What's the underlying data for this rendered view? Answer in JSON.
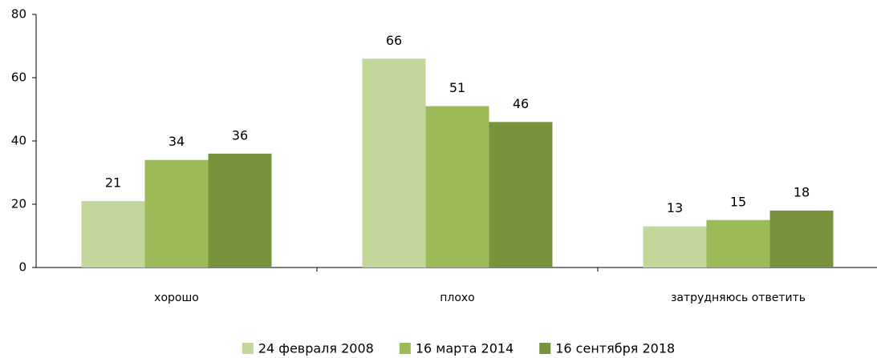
{
  "chart_data": {
    "type": "bar",
    "categories": [
      "хорошо",
      "плохо",
      "затрудняюсь ответить"
    ],
    "series": [
      {
        "name": "24 февраля 2008",
        "color": "#c4d79b",
        "values": [
          21,
          66,
          13
        ]
      },
      {
        "name": "16 марта 2014",
        "color": "#9bbb59",
        "values": [
          34,
          51,
          15
        ]
      },
      {
        "name": "16 сентября 2018",
        "color": "#77933c",
        "values": [
          36,
          46,
          18
        ]
      }
    ],
    "ylim": [
      0,
      80
    ],
    "yticks": [
      0,
      20,
      40,
      60,
      80
    ],
    "grid": false,
    "legend": "bottom"
  }
}
